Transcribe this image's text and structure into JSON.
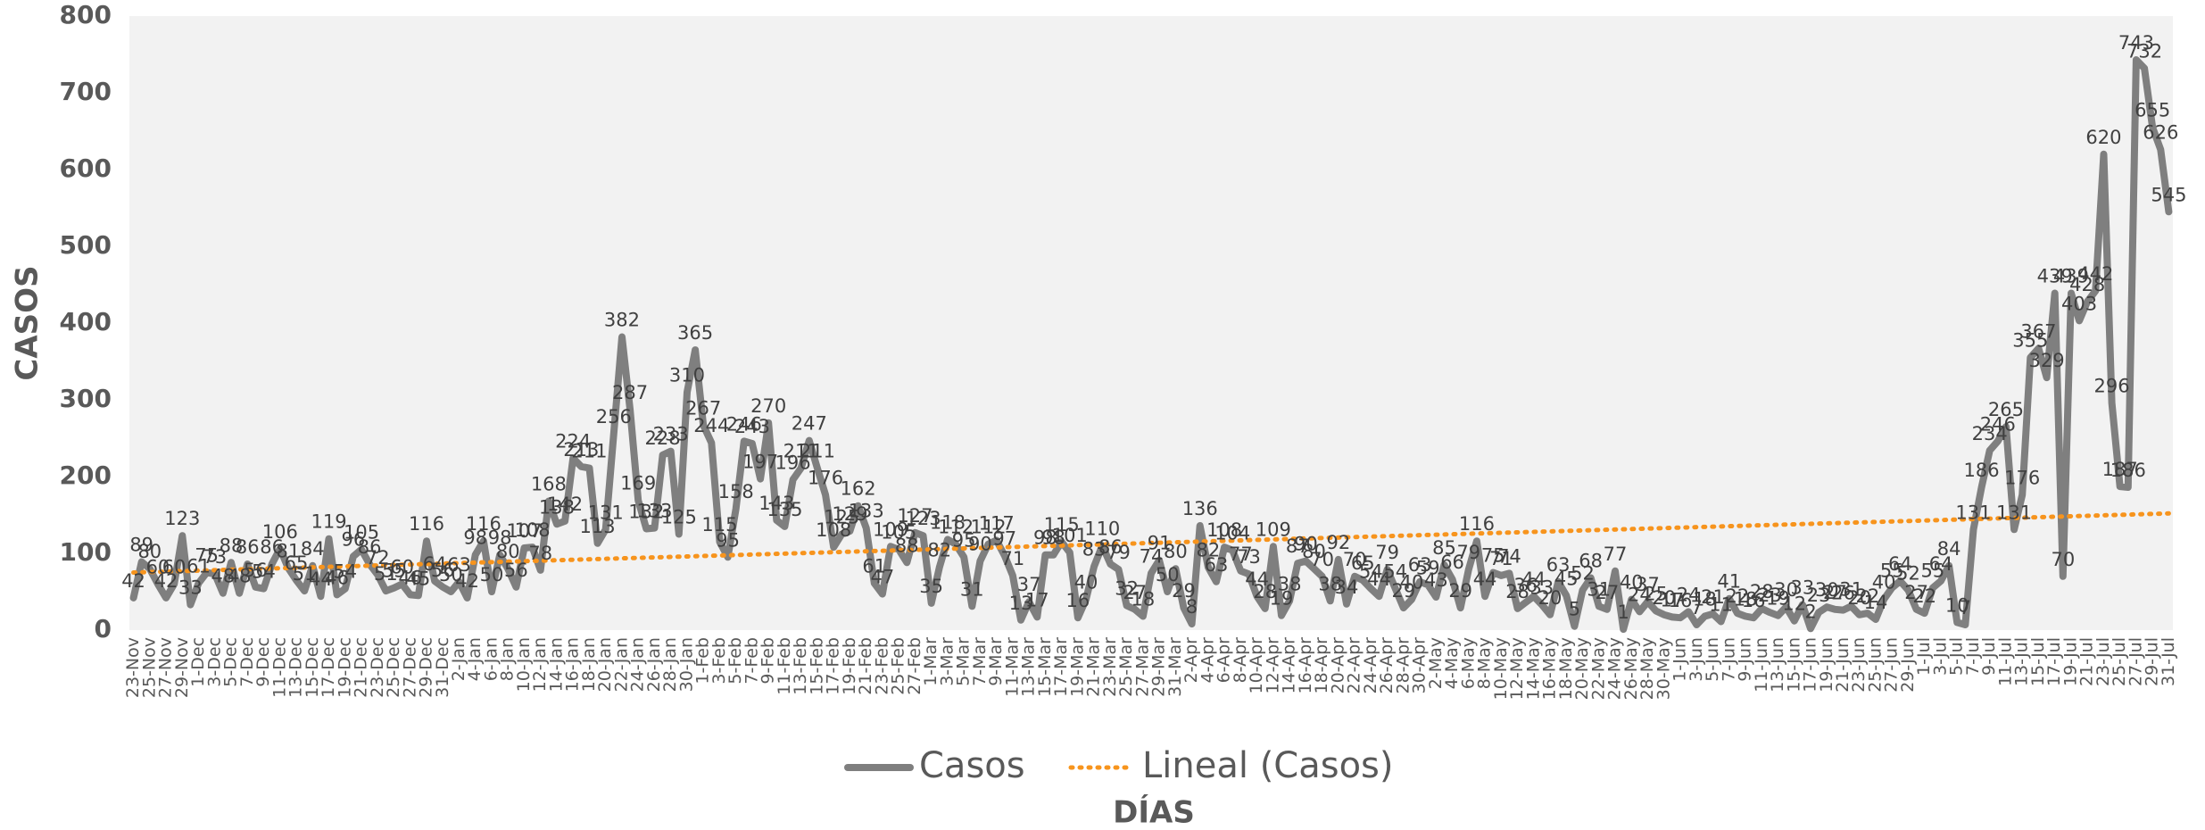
{
  "chart_data": {
    "type": "line",
    "y_label": "CASOS",
    "x_label": "DÍAS",
    "categories": [
      "23-Nov",
      null,
      "25-Nov",
      null,
      "27-Nov",
      null,
      "29-Nov",
      null,
      "1-Dec",
      null,
      "3-Dec",
      null,
      "5-Dec",
      null,
      "7-Dec",
      null,
      "9-Dec",
      null,
      "11-Dec",
      null,
      "13-Dec",
      null,
      "15-Dec",
      null,
      "17-Dec",
      null,
      "19-Dec",
      null,
      "21-Dec",
      null,
      "23-Dec",
      null,
      "25-Dec",
      null,
      "27-Dec",
      null,
      "29-Dec",
      null,
      "31-Dec",
      null,
      "2-Jan",
      null,
      "4-Jan",
      null,
      "6-Jan",
      null,
      "8-Jan",
      null,
      "10-Jan",
      null,
      "12-Jan",
      null,
      "14-Jan",
      null,
      "16-Jan",
      null,
      "18-Jan",
      null,
      "20-Jan",
      null,
      "22-Jan",
      null,
      "24-Jan",
      null,
      "26-Jan",
      null,
      "28-Jan",
      null,
      "30-Jan",
      null,
      "1-Feb",
      null,
      "3-Feb",
      null,
      "5-Feb",
      null,
      "7-Feb",
      null,
      "9-Feb",
      null,
      "11-Feb",
      null,
      "13-Feb",
      null,
      "15-Feb",
      null,
      "17-Feb",
      null,
      "19-Feb",
      null,
      "21-Feb",
      null,
      "23-Feb",
      null,
      "25-Feb",
      null,
      "27-Feb",
      null,
      "1-Mar",
      null,
      "3-Mar",
      null,
      "5-Mar",
      null,
      "7-Mar",
      null,
      "9-Mar",
      null,
      "11-Mar",
      null,
      "13-Mar",
      null,
      "15-Mar",
      null,
      "17-Mar",
      null,
      "19-Mar",
      null,
      "21-Mar",
      null,
      "23-Mar",
      null,
      "25-Mar",
      null,
      "27-Mar",
      null,
      "29-Mar",
      null,
      "31-Mar",
      null,
      "2-Apr",
      null,
      "4-Apr",
      null,
      "6-Apr",
      null,
      "8-Apr",
      null,
      "10-Apr",
      null,
      "12-Apr",
      null,
      "14-Apr",
      null,
      "16-Apr",
      null,
      "18-Apr",
      null,
      "20-Apr",
      null,
      "22-Apr",
      null,
      "24-Apr",
      null,
      "26-Apr",
      null,
      "28-Apr",
      null,
      "30-Apr",
      null,
      "2-May",
      null,
      "4-May",
      null,
      "6-May",
      null,
      "8-May",
      null,
      "10-May",
      null,
      "12-May",
      null,
      "14-May",
      null,
      "16-May",
      null,
      "18-May",
      null,
      "20-May",
      null,
      "22-May",
      null,
      "24-May",
      null,
      "26-May",
      null,
      "28-May",
      null,
      "30-May",
      null,
      "1-Jun",
      null,
      "3-Jun",
      null,
      "5-Jun",
      null,
      "7-Jun",
      null,
      "9-Jun",
      null,
      "11-Jun",
      null,
      "13-Jun",
      null,
      "15-Jun",
      null,
      "17-Jun",
      null,
      "19-Jun",
      null,
      "21-Jun",
      null,
      "23-Jun",
      null,
      "25-Jun",
      null,
      "27-Jun",
      null,
      "29-Jun",
      null,
      "1-Jul",
      null,
      "3-Jul",
      null,
      "5-Jul",
      null,
      "7-Jul",
      null,
      "9-Jul",
      null,
      "11-Jul",
      null,
      "13-Jul",
      null,
      "15-Jul",
      null,
      "17-Jul",
      null,
      "19-Jul",
      null,
      "21-Jul",
      null,
      "23-Jul",
      null,
      "25-Jul",
      null,
      "27-Jul",
      null,
      "29-Jul",
      null,
      "31-Jul"
    ],
    "series": [
      {
        "name": "Casos",
        "color": "#7f7f7f",
        "values": [
          42,
          89,
          80,
          60,
          42,
          60,
          123,
          33,
          61,
          75,
          73,
          48,
          88,
          48,
          86,
          56,
          54,
          86,
          106,
          81,
          65,
          51,
          84,
          44,
          119,
          46,
          54,
          96,
          105,
          86,
          72,
          51,
          55,
          60,
          46,
          45,
          116,
          64,
          56,
          50,
          63,
          42,
          98,
          116,
          50,
          98,
          80,
          56,
          107,
          108,
          78,
          168,
          138,
          142,
          224,
          213,
          211,
          113,
          131,
          256,
          382,
          287,
          169,
          132,
          133,
          228,
          233,
          125,
          310,
          365,
          267,
          244,
          115,
          95,
          158,
          246,
          243,
          197,
          270,
          143,
          135,
          196,
          211,
          247,
          211,
          176,
          108,
          125,
          129,
          162,
          133,
          61,
          47,
          109,
          105,
          88,
          127,
          123,
          35,
          82,
          118,
          112,
          95,
          31,
          90,
          112,
          117,
          97,
          71,
          13,
          37,
          17,
          98,
          98,
          115,
          101,
          16,
          40,
          83,
          110,
          86,
          79,
          32,
          27,
          18,
          74,
          91,
          50,
          80,
          29,
          8,
          136,
          82,
          63,
          108,
          104,
          77,
          73,
          44,
          28,
          109,
          19,
          38,
          87,
          90,
          80,
          70,
          38,
          92,
          34,
          70,
          65,
          54,
          44,
          79,
          54,
          29,
          40,
          63,
          59,
          43,
          85,
          66,
          29,
          79,
          116,
          44,
          75,
          71,
          74,
          28,
          36,
          44,
          33,
          20,
          63,
          45,
          5,
          52,
          68,
          31,
          27,
          77,
          1,
          40,
          24,
          37,
          25,
          20,
          17,
          16,
          24,
          7,
          18,
          21,
          11,
          41,
          22,
          18,
          16,
          28,
          23,
          19,
          30,
          12,
          33,
          2,
          23,
          30,
          27,
          26,
          31,
          20,
          22,
          14,
          40,
          55,
          64,
          52,
          27,
          22,
          55,
          64,
          84,
          10,
          7,
          131,
          186,
          234,
          246,
          265,
          131,
          176,
          355,
          367,
          329,
          439,
          70,
          439,
          403,
          428,
          442,
          620,
          296,
          187,
          186,
          743,
          732,
          655,
          626,
          545
        ]
      }
    ],
    "trendline": {
      "name": "Lineal (Casos)",
      "color": "#f7941d",
      "values": [
        75,
        152
      ]
    },
    "ylim": [
      0,
      800
    ],
    "yticks": [
      0,
      100,
      200,
      300,
      400,
      500,
      600,
      700,
      800
    ],
    "grid": false
  }
}
